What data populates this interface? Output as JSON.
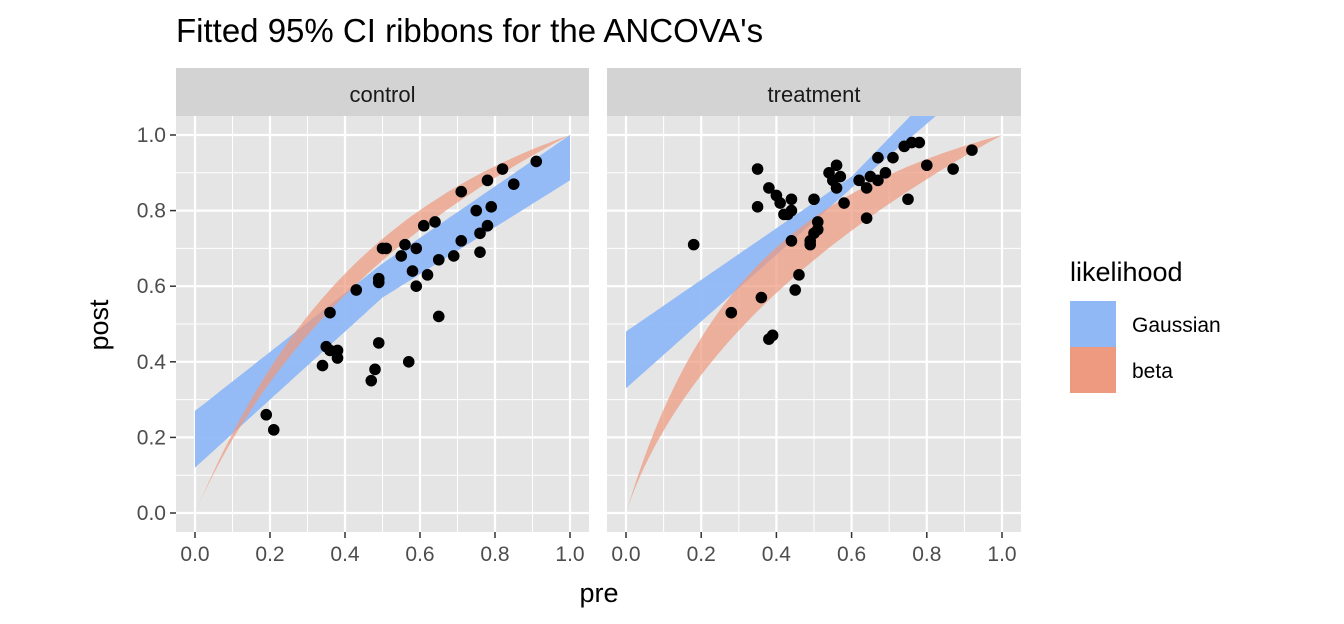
{
  "chart_data": {
    "type": "scatter",
    "title": "Fitted 95% CI ribbons for the ANCOVA's",
    "xlabel": "pre",
    "ylabel": "post",
    "xlim": [
      0,
      1
    ],
    "ylim": [
      0,
      1
    ],
    "x_ticks": [
      "0.0",
      "0.2",
      "0.4",
      "0.6",
      "0.8",
      "1.0"
    ],
    "y_ticks": [
      "0.0",
      "0.2",
      "0.4",
      "0.6",
      "0.8",
      "1.0"
    ],
    "legend": {
      "title": "likelihood",
      "placement": "right",
      "entries": [
        {
          "label": "Gaussian",
          "color": "#8fb8f5"
        },
        {
          "label": "beta",
          "color": "#ed9a80"
        }
      ]
    },
    "colors": {
      "panel_bg": "#e5e5e5",
      "strip_bg": "#d3d3d3",
      "points": "#000000",
      "gaussian": "#8fb8f5",
      "beta": "#ed9a80"
    },
    "panels": [
      {
        "label": "control",
        "points": [
          [
            0.19,
            0.26
          ],
          [
            0.21,
            0.22
          ],
          [
            0.34,
            0.39
          ],
          [
            0.35,
            0.44
          ],
          [
            0.36,
            0.53
          ],
          [
            0.36,
            0.43
          ],
          [
            0.38,
            0.43
          ],
          [
            0.38,
            0.41
          ],
          [
            0.43,
            0.59
          ],
          [
            0.47,
            0.35
          ],
          [
            0.48,
            0.38
          ],
          [
            0.49,
            0.45
          ],
          [
            0.49,
            0.62
          ],
          [
            0.49,
            0.61
          ],
          [
            0.5,
            0.7
          ],
          [
            0.51,
            0.7
          ],
          [
            0.55,
            0.68
          ],
          [
            0.56,
            0.71
          ],
          [
            0.57,
            0.4
          ],
          [
            0.58,
            0.64
          ],
          [
            0.59,
            0.6
          ],
          [
            0.59,
            0.7
          ],
          [
            0.61,
            0.76
          ],
          [
            0.62,
            0.63
          ],
          [
            0.64,
            0.77
          ],
          [
            0.65,
            0.67
          ],
          [
            0.65,
            0.52
          ],
          [
            0.69,
            0.68
          ],
          [
            0.71,
            0.72
          ],
          [
            0.71,
            0.85
          ],
          [
            0.75,
            0.8
          ],
          [
            0.76,
            0.74
          ],
          [
            0.76,
            0.69
          ],
          [
            0.78,
            0.88
          ],
          [
            0.78,
            0.76
          ],
          [
            0.79,
            0.81
          ],
          [
            0.82,
            0.91
          ],
          [
            0.85,
            0.87
          ],
          [
            0.91,
            0.93
          ]
        ],
        "gaussian_ribbon": {
          "lower": [
            [
              0,
              0.12
            ],
            [
              0.5,
              0.57
            ],
            [
              1,
              0.88
            ]
          ],
          "upper": [
            [
              0,
              0.27
            ],
            [
              0.5,
              0.66
            ],
            [
              1,
              1.0
            ]
          ]
        },
        "beta_ribbon": {
          "a": 2.3,
          "b_lower": 0.85,
          "b_upper": 1.15
        }
      },
      {
        "label": "treatment",
        "points": [
          [
            0.18,
            0.71
          ],
          [
            0.28,
            0.53
          ],
          [
            0.35,
            0.91
          ],
          [
            0.35,
            0.81
          ],
          [
            0.36,
            0.57
          ],
          [
            0.38,
            0.46
          ],
          [
            0.38,
            0.86
          ],
          [
            0.39,
            0.47
          ],
          [
            0.4,
            0.84
          ],
          [
            0.41,
            0.82
          ],
          [
            0.42,
            0.79
          ],
          [
            0.43,
            0.79
          ],
          [
            0.44,
            0.83
          ],
          [
            0.44,
            0.8
          ],
          [
            0.44,
            0.72
          ],
          [
            0.45,
            0.59
          ],
          [
            0.46,
            0.63
          ],
          [
            0.49,
            0.72
          ],
          [
            0.49,
            0.71
          ],
          [
            0.5,
            0.83
          ],
          [
            0.5,
            0.74
          ],
          [
            0.51,
            0.75
          ],
          [
            0.51,
            0.77
          ],
          [
            0.54,
            0.9
          ],
          [
            0.55,
            0.88
          ],
          [
            0.56,
            0.86
          ],
          [
            0.56,
            0.92
          ],
          [
            0.57,
            0.89
          ],
          [
            0.58,
            0.82
          ],
          [
            0.62,
            0.88
          ],
          [
            0.64,
            0.86
          ],
          [
            0.64,
            0.78
          ],
          [
            0.65,
            0.89
          ],
          [
            0.67,
            0.94
          ],
          [
            0.67,
            0.88
          ],
          [
            0.69,
            0.9
          ],
          [
            0.71,
            0.94
          ],
          [
            0.74,
            0.97
          ],
          [
            0.75,
            0.83
          ],
          [
            0.76,
            0.98
          ],
          [
            0.78,
            0.98
          ],
          [
            0.8,
            0.92
          ],
          [
            0.87,
            0.91
          ],
          [
            0.92,
            0.96
          ]
        ],
        "gaussian_ribbon": {
          "lower": [
            [
              0,
              0.33
            ],
            [
              0.6,
              0.86
            ],
            [
              1,
              1.2
            ]
          ],
          "upper": [
            [
              0,
              0.48
            ],
            [
              0.6,
              0.89
            ],
            [
              1,
              1.3
            ]
          ]
        },
        "beta_ribbon": {
          "a": 3.3,
          "b_lower": 0.65,
          "b_upper": 1.05
        }
      }
    ]
  }
}
